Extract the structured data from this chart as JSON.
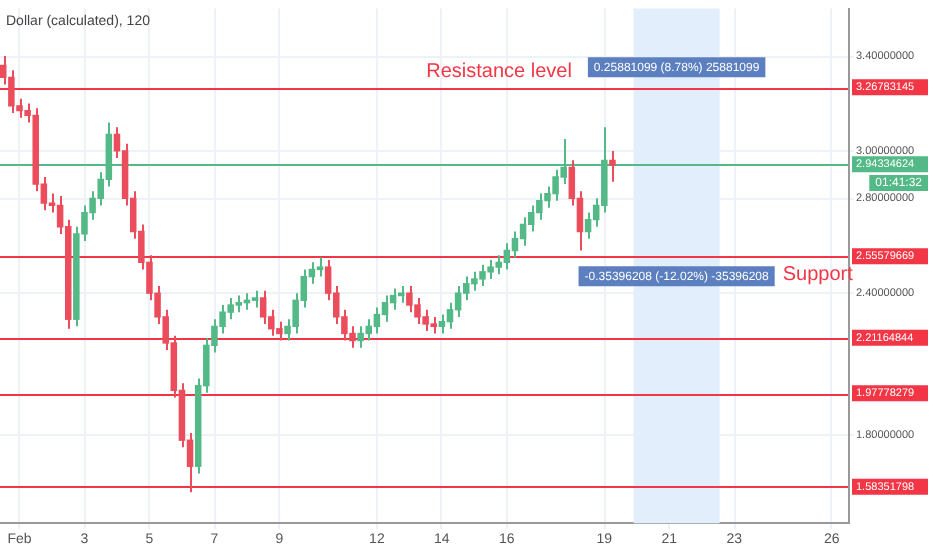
{
  "chart_data": {
    "type": "candlestick",
    "title": "Dollar (calculated), 120",
    "x": [
      0.5,
      0.75,
      1,
      1.25,
      1.5,
      1.75,
      2,
      2.25,
      2.5,
      2.75,
      3,
      3.25,
      3.5,
      3.75,
      4,
      4.25,
      4.5,
      4.75,
      5,
      5.25,
      5.5,
      5.75,
      6,
      6.25,
      6.5,
      6.75,
      7,
      7.25,
      7.5,
      7.75,
      8,
      8.25,
      8.5,
      8.75,
      9,
      9.25,
      9.5,
      9.75,
      10,
      10.25,
      10.5,
      10.75,
      11,
      11.25,
      11.5,
      11.75,
      12,
      12.25,
      12.5,
      12.75,
      13,
      13.25,
      13.5,
      13.75,
      14,
      14.25,
      14.5,
      14.75,
      15,
      15.25,
      15.5,
      15.75,
      16,
      16.25,
      16.5,
      16.75,
      17,
      17.25,
      17.5,
      17.75,
      18,
      18.25,
      18.5,
      18.75,
      19,
      19.25
    ],
    "ohlc": [
      [
        3.36,
        3.4,
        3.28,
        3.31
      ],
      [
        3.31,
        3.34,
        3.16,
        3.19
      ],
      [
        3.19,
        3.22,
        3.14,
        3.17
      ],
      [
        3.17,
        3.2,
        3.12,
        3.15
      ],
      [
        3.15,
        3.18,
        2.83,
        2.86
      ],
      [
        2.86,
        2.89,
        2.75,
        2.78
      ],
      [
        2.78,
        2.82,
        2.74,
        2.77
      ],
      [
        2.77,
        2.81,
        2.65,
        2.68
      ],
      [
        2.68,
        2.71,
        2.25,
        2.29
      ],
      [
        2.29,
        2.68,
        2.26,
        2.65
      ],
      [
        2.65,
        2.77,
        2.62,
        2.74
      ],
      [
        2.74,
        2.83,
        2.71,
        2.8
      ],
      [
        2.8,
        2.91,
        2.77,
        2.88
      ],
      [
        2.88,
        3.12,
        2.85,
        3.07
      ],
      [
        3.07,
        3.1,
        2.97,
        3.0
      ],
      [
        3.0,
        3.03,
        2.77,
        2.8
      ],
      [
        2.8,
        2.83,
        2.63,
        2.66
      ],
      [
        2.66,
        2.69,
        2.5,
        2.53
      ],
      [
        2.53,
        2.56,
        2.37,
        2.4
      ],
      [
        2.4,
        2.43,
        2.27,
        2.3
      ],
      [
        2.3,
        2.33,
        2.16,
        2.19
      ],
      [
        2.19,
        2.22,
        1.96,
        1.99
      ],
      [
        1.99,
        2.02,
        1.75,
        1.78
      ],
      [
        1.78,
        1.81,
        1.56,
        1.67
      ],
      [
        1.67,
        2.04,
        1.64,
        2.01
      ],
      [
        2.01,
        2.21,
        1.98,
        2.18
      ],
      [
        2.18,
        2.29,
        2.15,
        2.26
      ],
      [
        2.26,
        2.35,
        2.23,
        2.32
      ],
      [
        2.32,
        2.38,
        2.29,
        2.35
      ],
      [
        2.35,
        2.39,
        2.32,
        2.36
      ],
      [
        2.36,
        2.4,
        2.33,
        2.37
      ],
      [
        2.37,
        2.41,
        2.34,
        2.38
      ],
      [
        2.38,
        2.41,
        2.27,
        2.3
      ],
      [
        2.3,
        2.33,
        2.22,
        2.25
      ],
      [
        2.25,
        2.28,
        2.2,
        2.23
      ],
      [
        2.23,
        2.29,
        2.2,
        2.26
      ],
      [
        2.26,
        2.4,
        2.23,
        2.37
      ],
      [
        2.37,
        2.5,
        2.34,
        2.47
      ],
      [
        2.47,
        2.53,
        2.44,
        2.5
      ],
      [
        2.5,
        2.55,
        2.47,
        2.51
      ],
      [
        2.51,
        2.54,
        2.37,
        2.4
      ],
      [
        2.4,
        2.43,
        2.27,
        2.3
      ],
      [
        2.3,
        2.33,
        2.2,
        2.23
      ],
      [
        2.23,
        2.26,
        2.17,
        2.2
      ],
      [
        2.2,
        2.26,
        2.17,
        2.23
      ],
      [
        2.23,
        2.29,
        2.2,
        2.26
      ],
      [
        2.26,
        2.34,
        2.23,
        2.31
      ],
      [
        2.31,
        2.39,
        2.28,
        2.36
      ],
      [
        2.36,
        2.42,
        2.33,
        2.39
      ],
      [
        2.39,
        2.43,
        2.36,
        2.4
      ],
      [
        2.4,
        2.43,
        2.32,
        2.35
      ],
      [
        2.35,
        2.38,
        2.27,
        2.3
      ],
      [
        2.3,
        2.33,
        2.24,
        2.27
      ],
      [
        2.27,
        2.3,
        2.23,
        2.26
      ],
      [
        2.26,
        2.31,
        2.23,
        2.28
      ],
      [
        2.28,
        2.36,
        2.25,
        2.33
      ],
      [
        2.33,
        2.43,
        2.3,
        2.4
      ],
      [
        2.4,
        2.47,
        2.37,
        2.44
      ],
      [
        2.44,
        2.49,
        2.41,
        2.46
      ],
      [
        2.46,
        2.52,
        2.43,
        2.49
      ],
      [
        2.49,
        2.54,
        2.46,
        2.51
      ],
      [
        2.51,
        2.56,
        2.48,
        2.53
      ],
      [
        2.53,
        2.61,
        2.5,
        2.58
      ],
      [
        2.58,
        2.66,
        2.55,
        2.63
      ],
      [
        2.63,
        2.72,
        2.6,
        2.69
      ],
      [
        2.69,
        2.77,
        2.66,
        2.74
      ],
      [
        2.74,
        2.82,
        2.71,
        2.79
      ],
      [
        2.79,
        2.85,
        2.76,
        2.82
      ],
      [
        2.82,
        2.92,
        2.79,
        2.89
      ],
      [
        2.89,
        3.05,
        2.86,
        2.93
      ],
      [
        2.93,
        2.96,
        2.77,
        2.8
      ],
      [
        2.8,
        2.83,
        2.58,
        2.66
      ],
      [
        2.66,
        2.74,
        2.63,
        2.71
      ],
      [
        2.71,
        2.8,
        2.68,
        2.77
      ],
      [
        2.77,
        3.1,
        2.74,
        2.96
      ],
      [
        2.96,
        3.0,
        2.87,
        2.94
      ]
    ],
    "colors": [
      "#eb4d5c",
      "#eb4d5c",
      "#eb4d5c",
      "#eb4d5c",
      "#eb4d5c",
      "#eb4d5c",
      "#eb4d5c",
      "#eb4d5c",
      "#eb4d5c",
      "#53b987",
      "#53b987",
      "#53b987",
      "#53b987",
      "#53b987",
      "#eb4d5c",
      "#eb4d5c",
      "#eb4d5c",
      "#eb4d5c",
      "#eb4d5c",
      "#eb4d5c",
      "#eb4d5c",
      "#eb4d5c",
      "#eb4d5c",
      "#eb4d5c",
      "#53b987",
      "#53b987",
      "#53b987",
      "#53b987",
      "#53b987",
      "#53b987",
      "#53b987",
      "#53b987",
      "#eb4d5c",
      "#eb4d5c",
      "#eb4d5c",
      "#53b987",
      "#53b987",
      "#53b987",
      "#53b987",
      "#53b987",
      "#eb4d5c",
      "#eb4d5c",
      "#eb4d5c",
      "#eb4d5c",
      "#53b987",
      "#53b987",
      "#53b987",
      "#53b987",
      "#53b987",
      "#53b987",
      "#eb4d5c",
      "#eb4d5c",
      "#eb4d5c",
      "#eb4d5c",
      "#53b987",
      "#53b987",
      "#53b987",
      "#53b987",
      "#53b987",
      "#53b987",
      "#53b987",
      "#53b987",
      "#53b987",
      "#53b987",
      "#53b987",
      "#53b987",
      "#53b987",
      "#53b987",
      "#53b987",
      "#53b987",
      "#eb4d5c",
      "#eb4d5c",
      "#53b987",
      "#53b987",
      "#53b987",
      "#eb4d5c"
    ],
    "xlim": [
      0.4,
      26.5
    ],
    "xticks": [
      {
        "value": 1,
        "label": "Feb"
      },
      3,
      5,
      7,
      9,
      12,
      14,
      16,
      19,
      21,
      23,
      26
    ],
    "ylim": [
      1.43,
      3.6
    ],
    "yticks": [
      {
        "value": 3.4,
        "label": "3.40000000"
      },
      {
        "value": 3.0,
        "label": "3.00000000"
      },
      {
        "value": 2.8,
        "label": "2.80000000"
      },
      {
        "value": 2.4,
        "label": "2.40000000"
      },
      {
        "value": 1.8,
        "label": "1.80000000"
      }
    ],
    "grid": true,
    "ref_lines": [
      {
        "axis": "y",
        "value": 3.26783145,
        "label": "Resistance level",
        "color": "#f23645"
      },
      {
        "axis": "y",
        "value": 2.94334624,
        "color": "#53b987"
      },
      {
        "axis": "y",
        "value": 2.55579669,
        "label": "Support",
        "color": "#f23645"
      },
      {
        "axis": "y",
        "value": 2.21164844,
        "color": "#f23645"
      },
      {
        "axis": "y",
        "value": 1.97778279,
        "color": "#f23645"
      },
      {
        "axis": "y",
        "value": 1.58351798,
        "color": "#f23645"
      }
    ],
    "bands": [
      {
        "axis": "x",
        "from": 19.9,
        "to": 22.55,
        "color": "#e3eefc"
      }
    ],
    "annotations": [
      "0.25881099 (8.78%) 25881099",
      "-0.35396208 (-12.02%) -35396208",
      "01:41:32",
      "3.26783145",
      "2.94334624",
      "2.55579669",
      "2.21164844",
      "1.97778279",
      "1.58351798"
    ]
  }
}
